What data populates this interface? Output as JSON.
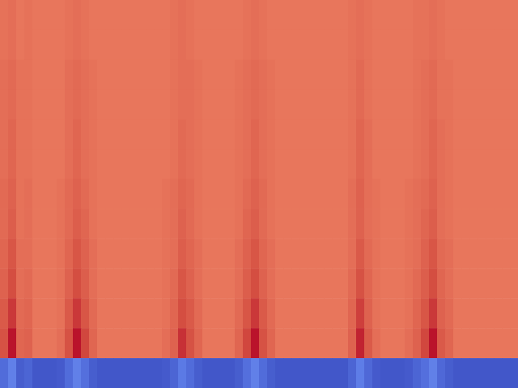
{
  "chart_data": {
    "type": "heatmap",
    "color": "coolwarm",
    "tick_labels": false,
    "zlim": [
      0,
      1
    ],
    "cells": [
      [
        0.81,
        0.82,
        0.8,
        0.81,
        0.8,
        0.8,
        0.8,
        0.8,
        0.81,
        0.82,
        0.81,
        0.8,
        0.8,
        0.8,
        0.8,
        0.8,
        0.8,
        0.8,
        0.8,
        0.8,
        0.8,
        0.81,
        0.82,
        0.81,
        0.8,
        0.8,
        0.8,
        0.8,
        0.8,
        0.8,
        0.81,
        0.82,
        0.81,
        0.8,
        0.8,
        0.8,
        0.8,
        0.8,
        0.8,
        0.8,
        0.8,
        0.8,
        0.8,
        0.81,
        0.82,
        0.81,
        0.8,
        0.8,
        0.8,
        0.8,
        0.8,
        0.81,
        0.81,
        0.82,
        0.81,
        0.8,
        0.8,
        0.8,
        0.8,
        0.8,
        0.8,
        0.8,
        0.8,
        0.8
      ],
      [
        0.81,
        0.82,
        0.8,
        0.81,
        0.8,
        0.8,
        0.8,
        0.8,
        0.81,
        0.82,
        0.81,
        0.8,
        0.8,
        0.8,
        0.8,
        0.8,
        0.8,
        0.8,
        0.8,
        0.8,
        0.8,
        0.81,
        0.82,
        0.81,
        0.8,
        0.8,
        0.8,
        0.8,
        0.8,
        0.8,
        0.81,
        0.82,
        0.81,
        0.8,
        0.8,
        0.8,
        0.8,
        0.8,
        0.8,
        0.8,
        0.8,
        0.8,
        0.8,
        0.81,
        0.82,
        0.81,
        0.8,
        0.8,
        0.8,
        0.8,
        0.8,
        0.81,
        0.81,
        0.82,
        0.81,
        0.8,
        0.8,
        0.8,
        0.8,
        0.8,
        0.8,
        0.8,
        0.8,
        0.8
      ],
      [
        0.82,
        0.83,
        0.81,
        0.81,
        0.8,
        0.8,
        0.8,
        0.8,
        0.82,
        0.83,
        0.82,
        0.81,
        0.8,
        0.8,
        0.8,
        0.8,
        0.8,
        0.8,
        0.8,
        0.8,
        0.8,
        0.81,
        0.82,
        0.82,
        0.81,
        0.8,
        0.8,
        0.8,
        0.8,
        0.81,
        0.82,
        0.83,
        0.82,
        0.81,
        0.8,
        0.8,
        0.8,
        0.8,
        0.8,
        0.8,
        0.8,
        0.8,
        0.8,
        0.81,
        0.83,
        0.81,
        0.8,
        0.8,
        0.8,
        0.8,
        0.8,
        0.81,
        0.82,
        0.83,
        0.81,
        0.81,
        0.8,
        0.8,
        0.8,
        0.8,
        0.8,
        0.8,
        0.8,
        0.8
      ],
      [
        0.82,
        0.83,
        0.81,
        0.81,
        0.8,
        0.8,
        0.8,
        0.8,
        0.82,
        0.83,
        0.82,
        0.81,
        0.8,
        0.8,
        0.8,
        0.8,
        0.8,
        0.8,
        0.8,
        0.8,
        0.8,
        0.81,
        0.82,
        0.82,
        0.81,
        0.8,
        0.8,
        0.8,
        0.8,
        0.81,
        0.82,
        0.83,
        0.82,
        0.81,
        0.8,
        0.8,
        0.8,
        0.8,
        0.8,
        0.8,
        0.8,
        0.8,
        0.8,
        0.81,
        0.83,
        0.81,
        0.8,
        0.8,
        0.8,
        0.8,
        0.8,
        0.81,
        0.82,
        0.83,
        0.81,
        0.81,
        0.8,
        0.8,
        0.8,
        0.8,
        0.8,
        0.8,
        0.8,
        0.8
      ],
      [
        0.82,
        0.84,
        0.81,
        0.81,
        0.8,
        0.8,
        0.8,
        0.8,
        0.82,
        0.84,
        0.82,
        0.81,
        0.8,
        0.8,
        0.8,
        0.8,
        0.8,
        0.8,
        0.8,
        0.8,
        0.8,
        0.81,
        0.83,
        0.82,
        0.81,
        0.8,
        0.8,
        0.8,
        0.8,
        0.81,
        0.82,
        0.84,
        0.82,
        0.81,
        0.8,
        0.8,
        0.8,
        0.8,
        0.8,
        0.8,
        0.8,
        0.8,
        0.8,
        0.81,
        0.84,
        0.82,
        0.8,
        0.8,
        0.8,
        0.8,
        0.8,
        0.81,
        0.82,
        0.84,
        0.82,
        0.81,
        0.8,
        0.8,
        0.8,
        0.8,
        0.8,
        0.8,
        0.8,
        0.8
      ],
      [
        0.82,
        0.84,
        0.81,
        0.81,
        0.8,
        0.8,
        0.8,
        0.8,
        0.82,
        0.84,
        0.82,
        0.81,
        0.8,
        0.8,
        0.8,
        0.8,
        0.8,
        0.8,
        0.8,
        0.8,
        0.8,
        0.81,
        0.83,
        0.82,
        0.81,
        0.8,
        0.8,
        0.8,
        0.8,
        0.81,
        0.82,
        0.84,
        0.82,
        0.81,
        0.8,
        0.8,
        0.8,
        0.8,
        0.8,
        0.8,
        0.8,
        0.8,
        0.8,
        0.81,
        0.84,
        0.82,
        0.8,
        0.8,
        0.8,
        0.8,
        0.8,
        0.81,
        0.82,
        0.84,
        0.82,
        0.81,
        0.8,
        0.8,
        0.8,
        0.8,
        0.8,
        0.8,
        0.8,
        0.8
      ],
      [
        0.83,
        0.85,
        0.81,
        0.82,
        0.8,
        0.8,
        0.8,
        0.81,
        0.83,
        0.85,
        0.83,
        0.81,
        0.8,
        0.8,
        0.8,
        0.8,
        0.8,
        0.8,
        0.8,
        0.8,
        0.81,
        0.82,
        0.84,
        0.83,
        0.81,
        0.8,
        0.8,
        0.8,
        0.8,
        0.81,
        0.83,
        0.85,
        0.83,
        0.81,
        0.8,
        0.8,
        0.8,
        0.8,
        0.8,
        0.8,
        0.8,
        0.8,
        0.8,
        0.82,
        0.85,
        0.82,
        0.81,
        0.8,
        0.8,
        0.8,
        0.81,
        0.82,
        0.83,
        0.85,
        0.82,
        0.81,
        0.8,
        0.8,
        0.8,
        0.8,
        0.8,
        0.8,
        0.8,
        0.8
      ],
      [
        0.83,
        0.86,
        0.81,
        0.82,
        0.8,
        0.8,
        0.8,
        0.81,
        0.83,
        0.86,
        0.84,
        0.81,
        0.8,
        0.8,
        0.8,
        0.8,
        0.8,
        0.8,
        0.8,
        0.8,
        0.81,
        0.82,
        0.85,
        0.83,
        0.81,
        0.8,
        0.8,
        0.8,
        0.8,
        0.81,
        0.84,
        0.86,
        0.83,
        0.81,
        0.8,
        0.8,
        0.8,
        0.8,
        0.8,
        0.8,
        0.8,
        0.8,
        0.8,
        0.82,
        0.85,
        0.82,
        0.81,
        0.8,
        0.8,
        0.8,
        0.81,
        0.82,
        0.84,
        0.86,
        0.82,
        0.81,
        0.8,
        0.8,
        0.8,
        0.8,
        0.8,
        0.8,
        0.8,
        0.8
      ],
      [
        0.84,
        0.88,
        0.82,
        0.82,
        0.8,
        0.8,
        0.8,
        0.81,
        0.84,
        0.88,
        0.85,
        0.82,
        0.8,
        0.8,
        0.8,
        0.8,
        0.8,
        0.8,
        0.8,
        0.8,
        0.81,
        0.82,
        0.86,
        0.84,
        0.82,
        0.8,
        0.8,
        0.8,
        0.8,
        0.82,
        0.85,
        0.88,
        0.84,
        0.82,
        0.8,
        0.8,
        0.8,
        0.8,
        0.8,
        0.8,
        0.8,
        0.8,
        0.8,
        0.82,
        0.87,
        0.83,
        0.81,
        0.8,
        0.8,
        0.8,
        0.81,
        0.82,
        0.85,
        0.88,
        0.83,
        0.82,
        0.8,
        0.8,
        0.8,
        0.8,
        0.8,
        0.8,
        0.8,
        0.8
      ],
      [
        0.85,
        0.9,
        0.82,
        0.83,
        0.8,
        0.8,
        0.8,
        0.81,
        0.85,
        0.9,
        0.86,
        0.82,
        0.8,
        0.8,
        0.8,
        0.8,
        0.8,
        0.8,
        0.8,
        0.8,
        0.81,
        0.83,
        0.88,
        0.85,
        0.82,
        0.8,
        0.8,
        0.8,
        0.8,
        0.82,
        0.86,
        0.9,
        0.85,
        0.82,
        0.8,
        0.8,
        0.8,
        0.8,
        0.8,
        0.8,
        0.8,
        0.8,
        0.8,
        0.83,
        0.89,
        0.84,
        0.81,
        0.8,
        0.8,
        0.8,
        0.81,
        0.83,
        0.86,
        0.9,
        0.84,
        0.82,
        0.8,
        0.8,
        0.8,
        0.8,
        0.8,
        0.8,
        0.8,
        0.8
      ],
      [
        0.87,
        0.93,
        0.83,
        0.84,
        0.8,
        0.8,
        0.8,
        0.81,
        0.87,
        0.93,
        0.88,
        0.83,
        0.8,
        0.8,
        0.8,
        0.8,
        0.8,
        0.8,
        0.8,
        0.8,
        0.81,
        0.84,
        0.9,
        0.87,
        0.83,
        0.8,
        0.8,
        0.8,
        0.8,
        0.83,
        0.88,
        0.93,
        0.87,
        0.83,
        0.8,
        0.8,
        0.8,
        0.8,
        0.8,
        0.8,
        0.8,
        0.8,
        0.8,
        0.84,
        0.92,
        0.85,
        0.81,
        0.8,
        0.8,
        0.8,
        0.81,
        0.84,
        0.88,
        0.93,
        0.85,
        0.83,
        0.8,
        0.8,
        0.8,
        0.8,
        0.8,
        0.8,
        0.8,
        0.8
      ],
      [
        0.89,
        0.98,
        0.84,
        0.85,
        0.8,
        0.8,
        0.8,
        0.82,
        0.89,
        0.98,
        0.91,
        0.84,
        0.8,
        0.8,
        0.8,
        0.8,
        0.8,
        0.8,
        0.8,
        0.8,
        0.82,
        0.85,
        0.94,
        0.89,
        0.84,
        0.8,
        0.8,
        0.8,
        0.8,
        0.84,
        0.91,
        0.98,
        0.89,
        0.84,
        0.8,
        0.8,
        0.8,
        0.8,
        0.8,
        0.8,
        0.8,
        0.8,
        0.8,
        0.85,
        0.96,
        0.87,
        0.82,
        0.8,
        0.8,
        0.8,
        0.82,
        0.85,
        0.91,
        0.98,
        0.87,
        0.84,
        0.8,
        0.8,
        0.8,
        0.8,
        0.8,
        0.8,
        0.8,
        0.8
      ],
      [
        0.09,
        0.15,
        0.05,
        0.07,
        0.03,
        0.03,
        0.03,
        0.04,
        0.09,
        0.15,
        0.1,
        0.05,
        0.03,
        0.03,
        0.03,
        0.03,
        0.03,
        0.03,
        0.03,
        0.03,
        0.04,
        0.07,
        0.13,
        0.09,
        0.05,
        0.03,
        0.03,
        0.03,
        0.03,
        0.05,
        0.1,
        0.15,
        0.09,
        0.05,
        0.03,
        0.03,
        0.03,
        0.03,
        0.03,
        0.03,
        0.03,
        0.03,
        0.03,
        0.07,
        0.14,
        0.08,
        0.04,
        0.03,
        0.03,
        0.03,
        0.04,
        0.07,
        0.1,
        0.15,
        0.08,
        0.05,
        0.03,
        0.03,
        0.03,
        0.03,
        0.03,
        0.03,
        0.03,
        0.03
      ]
    ]
  }
}
